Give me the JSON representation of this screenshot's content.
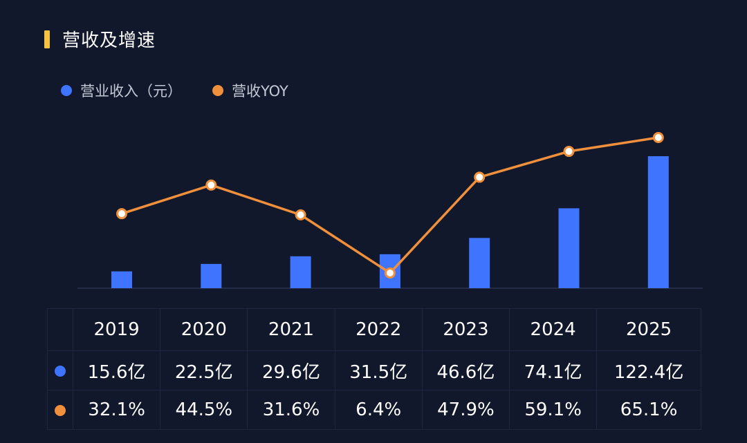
{
  "header": {
    "title": "营收及增速"
  },
  "colors": {
    "bar": "#3e74ff",
    "line": "#f0903c",
    "accent": "#f5c242",
    "background": "#12182b"
  },
  "chart_data": {
    "type": "bar",
    "title": "营收及增速",
    "categories": [
      "2019",
      "2020",
      "2021",
      "2022",
      "2023",
      "2024",
      "2025"
    ],
    "series": [
      {
        "name": "营业收入（元）",
        "type": "bar",
        "values": [
          15.6,
          22.5,
          29.6,
          31.5,
          46.6,
          74.1,
          122.4
        ],
        "labels": [
          "15.6亿",
          "22.5亿",
          "29.6亿",
          "31.5亿",
          "46.6亿",
          "74.1亿",
          "122.4亿"
        ]
      },
      {
        "name": "营收YOY",
        "type": "line",
        "values": [
          32.1,
          44.5,
          31.6,
          6.4,
          47.9,
          59.1,
          65.1
        ],
        "labels": [
          "32.1%",
          "44.5%",
          "31.6%",
          "6.4%",
          "47.9%",
          "59.1%",
          "65.1%"
        ]
      }
    ],
    "legend": "top-left",
    "grid": false
  }
}
